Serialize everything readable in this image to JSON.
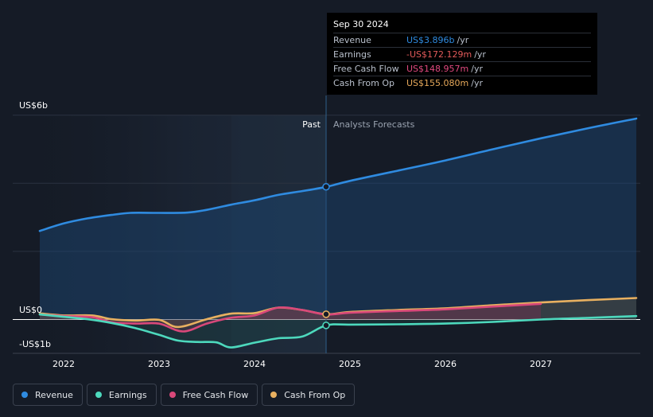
{
  "tooltip": {
    "date": "Sep 30 2024",
    "rows": [
      {
        "label": "Revenue",
        "value": "US$3.896b",
        "unit": "/yr",
        "color": "#2f8be0"
      },
      {
        "label": "Earnings",
        "value": "-US$172.129m",
        "unit": "/yr",
        "color": "#e25a5a"
      },
      {
        "label": "Free Cash Flow",
        "value": "US$148.957m",
        "unit": "/yr",
        "color": "#e0497f"
      },
      {
        "label": "Cash From Op",
        "value": "US$155.080m",
        "unit": "/yr",
        "color": "#e6a85a"
      }
    ]
  },
  "labels": {
    "past": "Past",
    "forecast": "Analysts Forecasts"
  },
  "legend": [
    {
      "label": "Revenue",
      "color": "#2f8be0"
    },
    {
      "label": "Earnings",
      "color": "#4dd9bd"
    },
    {
      "label": "Free Cash Flow",
      "color": "#d9487a"
    },
    {
      "label": "Cash From Op",
      "color": "#e8b060"
    }
  ],
  "chart_data": {
    "type": "line",
    "y_tick_labels": [
      "US$6b",
      "US$0",
      "-US$1b"
    ],
    "x_tick_labels": [
      "2022",
      "2023",
      "2024",
      "2025",
      "2026",
      "2027"
    ],
    "ylim": [
      -1,
      6
    ],
    "xlim": [
      2021.5,
      2028.0
    ],
    "divider_x": 2024.75,
    "series": [
      {
        "name": "Revenue",
        "color": "#2f8be0",
        "points": [
          [
            2021.75,
            2.6
          ],
          [
            2022.0,
            2.82
          ],
          [
            2022.25,
            2.97
          ],
          [
            2022.5,
            3.07
          ],
          [
            2022.7,
            3.13
          ],
          [
            2023.0,
            3.13
          ],
          [
            2023.3,
            3.14
          ],
          [
            2023.5,
            3.22
          ],
          [
            2023.75,
            3.37
          ],
          [
            2024.0,
            3.5
          ],
          [
            2024.25,
            3.66
          ],
          [
            2024.5,
            3.77
          ],
          [
            2024.75,
            3.896
          ],
          [
            2025.0,
            4.07
          ],
          [
            2025.5,
            4.37
          ],
          [
            2026.0,
            4.67
          ],
          [
            2026.5,
            5.0
          ],
          [
            2027.0,
            5.32
          ],
          [
            2027.5,
            5.62
          ],
          [
            2028.0,
            5.9
          ]
        ]
      },
      {
        "name": "Cash From Op",
        "color": "#e8b060",
        "points": [
          [
            2021.75,
            0.18
          ],
          [
            2022.0,
            0.12
          ],
          [
            2022.3,
            0.12
          ],
          [
            2022.5,
            0.01
          ],
          [
            2022.75,
            -0.03
          ],
          [
            2023.0,
            -0.01
          ],
          [
            2023.2,
            -0.22
          ],
          [
            2023.5,
            0.01
          ],
          [
            2023.75,
            0.17
          ],
          [
            2024.0,
            0.19
          ],
          [
            2024.25,
            0.35
          ],
          [
            2024.5,
            0.28
          ],
          [
            2024.75,
            0.155
          ],
          [
            2025.0,
            0.22
          ],
          [
            2025.5,
            0.28
          ],
          [
            2026.0,
            0.33
          ],
          [
            2026.5,
            0.42
          ],
          [
            2027.0,
            0.5
          ],
          [
            2027.5,
            0.57
          ],
          [
            2028.0,
            0.63
          ]
        ]
      },
      {
        "name": "Free Cash Flow",
        "color": "#d9487a",
        "points": [
          [
            2021.75,
            0.15
          ],
          [
            2022.0,
            0.1
          ],
          [
            2022.3,
            0.07
          ],
          [
            2022.5,
            -0.08
          ],
          [
            2022.75,
            -0.12
          ],
          [
            2023.0,
            -0.12
          ],
          [
            2023.25,
            -0.35
          ],
          [
            2023.5,
            -0.12
          ],
          [
            2023.75,
            0.05
          ],
          [
            2024.0,
            0.12
          ],
          [
            2024.25,
            0.35
          ],
          [
            2024.5,
            0.28
          ],
          [
            2024.75,
            0.149
          ],
          [
            2025.0,
            0.2
          ],
          [
            2025.5,
            0.25
          ],
          [
            2026.0,
            0.3
          ],
          [
            2026.5,
            0.38
          ],
          [
            2027.0,
            0.46
          ]
        ]
      },
      {
        "name": "Earnings",
        "color": "#4dd9bd",
        "points": [
          [
            2021.75,
            0.15
          ],
          [
            2022.0,
            0.08
          ],
          [
            2022.25,
            0.01
          ],
          [
            2022.5,
            -0.1
          ],
          [
            2022.75,
            -0.25
          ],
          [
            2023.0,
            -0.45
          ],
          [
            2023.2,
            -0.62
          ],
          [
            2023.4,
            -0.66
          ],
          [
            2023.6,
            -0.67
          ],
          [
            2023.75,
            -0.82
          ],
          [
            2024.0,
            -0.68
          ],
          [
            2024.25,
            -0.55
          ],
          [
            2024.5,
            -0.5
          ],
          [
            2024.75,
            -0.172
          ],
          [
            2025.0,
            -0.15
          ],
          [
            2025.5,
            -0.14
          ],
          [
            2026.0,
            -0.12
          ],
          [
            2026.5,
            -0.07
          ],
          [
            2027.0,
            0.0
          ],
          [
            2027.5,
            0.05
          ],
          [
            2028.0,
            0.1
          ]
        ]
      }
    ],
    "highlighted_points": [
      {
        "series": "Revenue",
        "x": 2024.75,
        "y": 3.896
      },
      {
        "series": "Cash From Op",
        "x": 2024.75,
        "y": 0.155
      },
      {
        "series": "Earnings",
        "x": 2024.75,
        "y": -0.172
      }
    ]
  }
}
